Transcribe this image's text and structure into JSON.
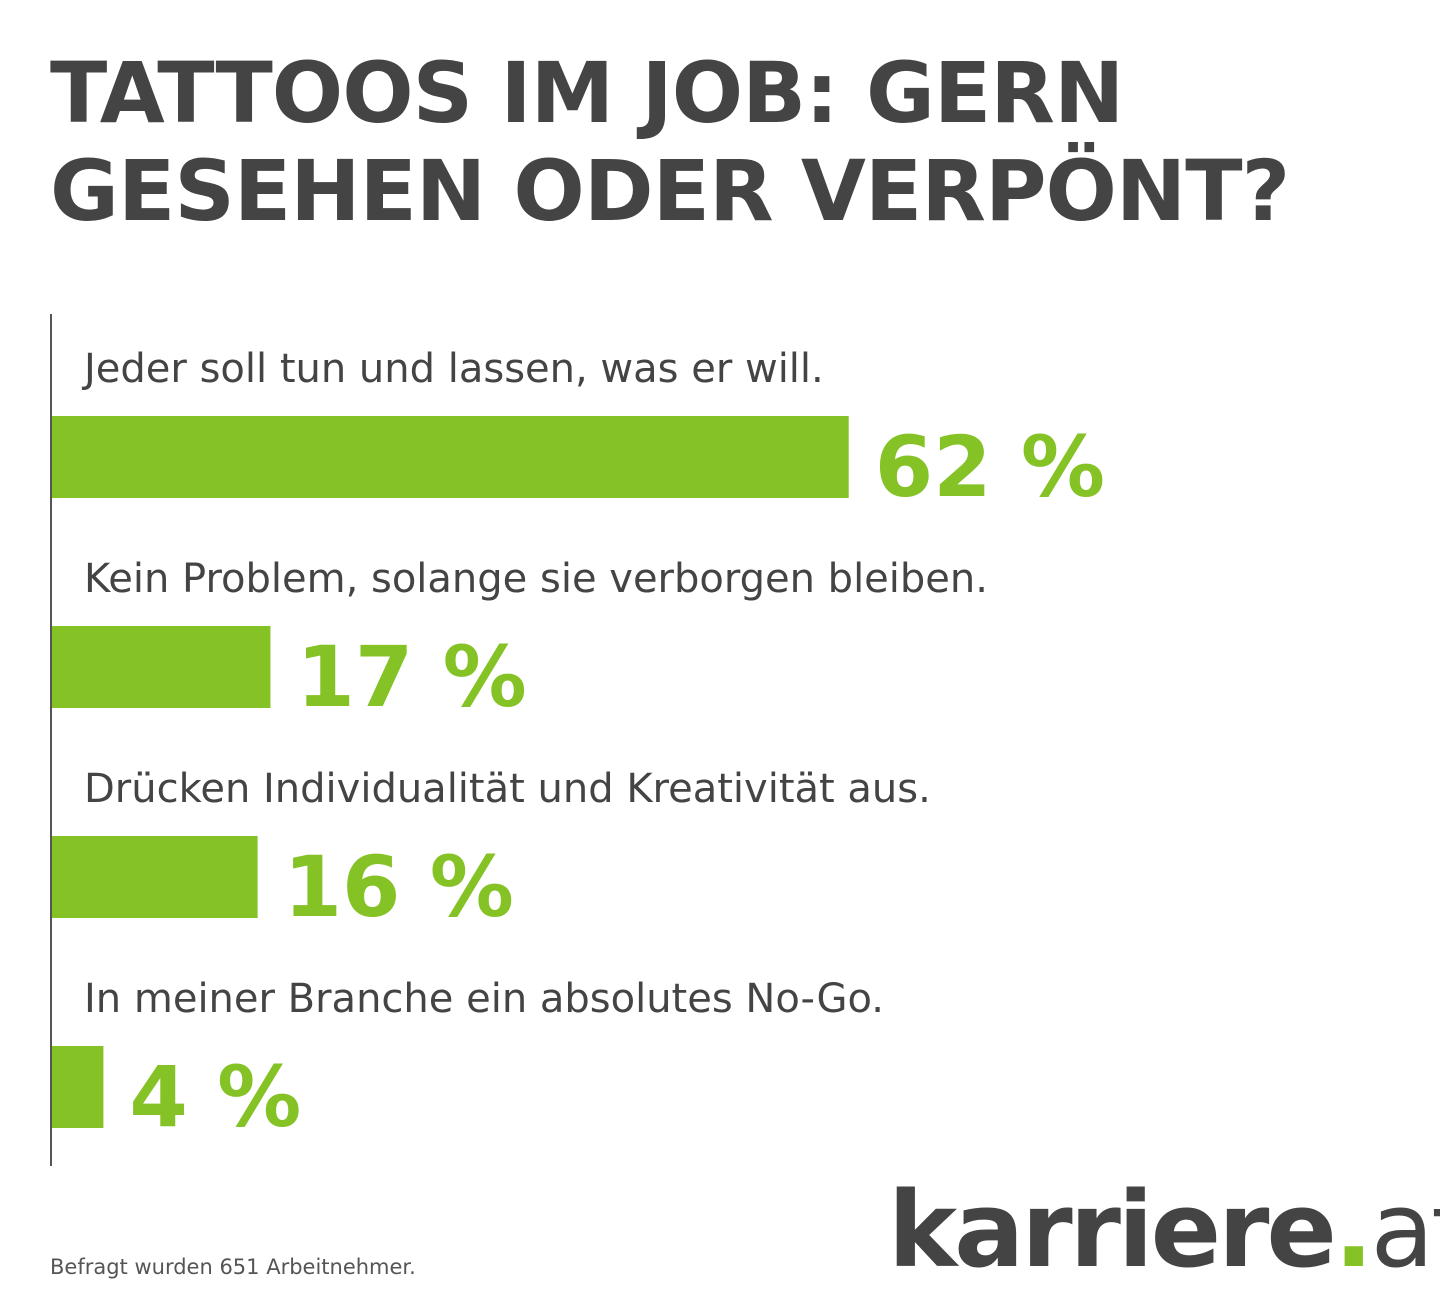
{
  "title": "TATTOOS IM JOB: GERN GESEHEN ODER VERPÖNT?",
  "footnote": "Befragt wurden 651 Arbeitnehmer.",
  "logo": {
    "name": "karriere",
    "dot": ".",
    "tld": "at"
  },
  "colors": {
    "bar": "#84c225",
    "text": "#444444",
    "axis": "#555555"
  },
  "chart_data": {
    "type": "bar",
    "orientation": "horizontal",
    "title": "TATTOOS IM JOB: GERN GESEHEN ODER VERPÖNT?",
    "categories": [
      "Jeder soll tun und lassen, was er will.",
      "Kein Problem, solange sie verborgen bleiben.",
      "Drücken Individualität und Kreativität aus.",
      "In meiner Branche ein absolutes No-Go."
    ],
    "values": [
      62,
      17,
      16,
      4
    ],
    "value_labels": [
      "62 %",
      "17 %",
      "16 %",
      "4 %"
    ],
    "unit": "%",
    "xlim": [
      0,
      100
    ],
    "grid": false
  }
}
